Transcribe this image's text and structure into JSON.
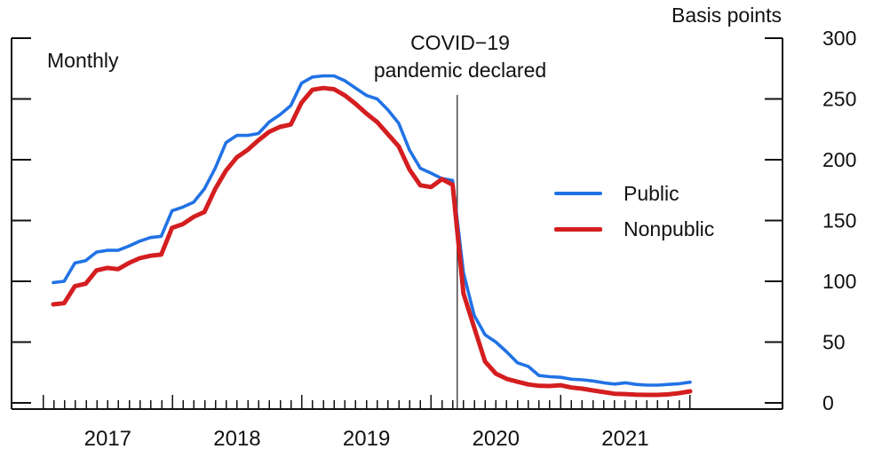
{
  "chart": {
    "frequency_label": "Monthly",
    "unit_label": "Basis points",
    "annotation": {
      "line1": "COVID−19",
      "line2": "pandemic declared"
    },
    "legend": [
      {
        "label": "Public"
      },
      {
        "label": "Nonpublic"
      }
    ],
    "colors": {
      "public": "#2172e5",
      "nonpublic": "#d41e20",
      "event_line": "#4a4a4a",
      "axis": "#111111"
    }
  },
  "chart_data": {
    "type": "line",
    "title": "",
    "ylabel": "Basis points",
    "frequency": "monthly",
    "x_start": "2017-02",
    "x_end": "2022-01",
    "ylim": [
      0,
      300
    ],
    "y_ticks": [
      0,
      50,
      100,
      150,
      200,
      250,
      300
    ],
    "y_tick_side": "right",
    "x_year_labels": [
      "2017",
      "2018",
      "2019",
      "2020",
      "2021"
    ],
    "grid": false,
    "legend_position": "center-right",
    "event_line": {
      "x": "2020-03",
      "label": "COVID−19 pandemic declared"
    },
    "series": [
      {
        "name": "Public",
        "color": "#2172e5",
        "values": [
          99,
          100,
          115,
          117,
          124,
          125.5,
          125.5,
          129,
          133,
          136,
          137,
          158,
          161,
          165,
          176,
          193,
          214,
          220,
          220,
          221.5,
          231,
          237,
          244.5,
          263,
          268,
          269,
          269,
          265,
          259,
          253,
          250,
          241,
          230,
          208,
          193,
          189,
          184.5,
          183,
          107,
          72,
          56,
          50,
          42,
          33,
          30,
          22.5,
          21.5,
          21,
          19.5,
          19,
          18,
          16.5,
          15.5,
          16.5,
          15.2,
          14.6,
          14.6,
          15.2,
          15.8,
          17
        ]
      },
      {
        "name": "Nonpublic",
        "color": "#d41e20",
        "values": [
          81,
          82,
          96,
          98,
          109,
          111,
          110,
          115,
          119,
          121,
          122,
          144,
          147,
          153,
          157,
          176,
          191,
          202,
          208,
          216,
          223,
          227,
          229,
          247,
          257.5,
          259,
          258,
          253,
          246,
          238,
          231,
          221,
          211,
          192,
          179,
          177.5,
          184,
          179.5,
          90,
          62,
          34,
          24,
          19.8,
          17.4,
          15.2,
          14,
          13.9,
          14.5,
          12.6,
          11.7,
          10.2,
          8.8,
          7.5,
          7.2,
          6.8,
          6.6,
          6.6,
          7,
          8,
          9.5
        ]
      }
    ]
  }
}
